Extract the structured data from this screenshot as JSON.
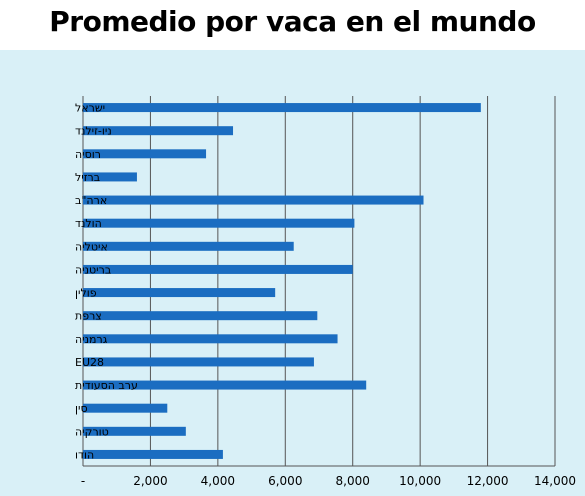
{
  "title": "Promedio por vaca en el mundo",
  "colors": {
    "background": "#d9f0f7",
    "bar": "#1b6dc1",
    "grid": "#555555"
  },
  "chart_data": {
    "type": "bar",
    "orientation": "horizontal",
    "title": "Promedio por vaca en el mundo",
    "xlabel": "",
    "ylabel": "",
    "xlim": [
      0,
      14000
    ],
    "grid": true,
    "x_ticks": [
      "-",
      "2,000",
      "4,000",
      "6,000",
      "8,000",
      "10,000",
      "12,000",
      "14,000"
    ],
    "categories": [
      "ישראל",
      "ניו-זילנד",
      "רוסיה",
      "ברזיל",
      "ארה\"ב",
      "הולנד",
      "איטליה",
      "בריטניה",
      "פולין",
      "צרפת",
      "גרמניה",
      "EU28",
      "ערב הסעודית",
      "סין",
      "טורקיה",
      "הודו"
    ],
    "values": [
      11800,
      4450,
      3650,
      1600,
      10100,
      8050,
      6250,
      8000,
      5700,
      6950,
      7550,
      6850,
      8400,
      2500,
      3050,
      4150
    ]
  }
}
